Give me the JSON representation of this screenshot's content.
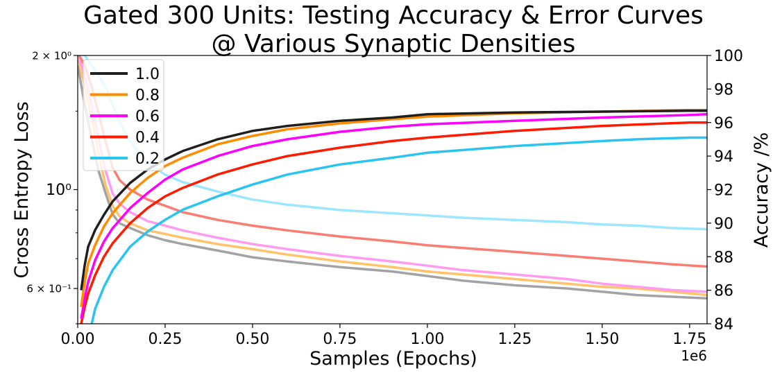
{
  "chart_data": {
    "type": "line",
    "title_lines": [
      "Gated 300 Units: Testing Accuracy & Error Curves",
      "@ Various Synaptic Densities"
    ],
    "xlabel": "Samples (Epochs)",
    "x_offset_label": "1e6",
    "ylabel_left": "Cross Entropy Loss",
    "ylabel_right": "Accuracy /%",
    "xlim": [
      0,
      1.8
    ],
    "x_ticks": [
      0.0,
      0.25,
      0.5,
      0.75,
      1.0,
      1.25,
      1.5,
      1.75
    ],
    "x_tick_labels": [
      "0.00",
      "0.25",
      "0.50",
      "0.75",
      "1.00",
      "1.25",
      "1.50",
      "1.75"
    ],
    "ylim_left": [
      0.5,
      2.0
    ],
    "y_left_scale": "log",
    "y_left_ticks": [
      {
        "value": 2.0,
        "label": "2 × 10⁰",
        "size": "small"
      },
      {
        "value": 1.0,
        "label": "10⁰",
        "size": "large"
      },
      {
        "value": 0.6,
        "label": "6 × 10⁻¹",
        "size": "small"
      }
    ],
    "ylim_right": [
      84,
      100
    ],
    "y_right_ticks": [
      84,
      86,
      88,
      90,
      92,
      94,
      96,
      98,
      100
    ],
    "legend": {
      "placement": "top-left",
      "entries": [
        "1.0",
        "0.8",
        "0.6",
        "0.4",
        "0.2"
      ]
    },
    "series": [
      {
        "name": "1.0",
        "color": "#1f1f1f",
        "loss_color": "#a3a3a3",
        "accuracy": [
          [
            0.01,
            86.0
          ],
          [
            0.02,
            87.5
          ],
          [
            0.03,
            88.6
          ],
          [
            0.05,
            89.6
          ],
          [
            0.075,
            90.5
          ],
          [
            0.1,
            91.3
          ],
          [
            0.15,
            92.4
          ],
          [
            0.2,
            93.2
          ],
          [
            0.25,
            93.8
          ],
          [
            0.3,
            94.3
          ],
          [
            0.4,
            95.0
          ],
          [
            0.5,
            95.5
          ],
          [
            0.6,
            95.8
          ],
          [
            0.75,
            96.1
          ],
          [
            0.9,
            96.3
          ],
          [
            1.0,
            96.5
          ],
          [
            1.25,
            96.6
          ],
          [
            1.5,
            96.65
          ],
          [
            1.75,
            96.7
          ],
          [
            1.8,
            96.7
          ]
        ],
        "loss": [
          [
            0.0,
            1.9
          ],
          [
            0.02,
            1.55
          ],
          [
            0.04,
            1.3
          ],
          [
            0.06,
            1.1
          ],
          [
            0.08,
            0.98
          ],
          [
            0.1,
            0.88
          ],
          [
            0.12,
            0.84
          ],
          [
            0.15,
            0.82
          ],
          [
            0.2,
            0.79
          ],
          [
            0.25,
            0.77
          ],
          [
            0.3,
            0.755
          ],
          [
            0.4,
            0.73
          ],
          [
            0.5,
            0.705
          ],
          [
            0.6,
            0.69
          ],
          [
            0.75,
            0.67
          ],
          [
            0.9,
            0.655
          ],
          [
            1.0,
            0.64
          ],
          [
            1.1,
            0.625
          ],
          [
            1.25,
            0.61
          ],
          [
            1.4,
            0.6
          ],
          [
            1.5,
            0.59
          ],
          [
            1.6,
            0.58
          ],
          [
            1.7,
            0.575
          ],
          [
            1.8,
            0.57
          ]
        ]
      },
      {
        "name": "0.8",
        "color": "#ff8c00",
        "loss_color": "#ffc36b",
        "accuracy": [
          [
            0.01,
            85.0
          ],
          [
            0.02,
            86.5
          ],
          [
            0.03,
            87.6
          ],
          [
            0.05,
            88.7
          ],
          [
            0.075,
            89.8
          ],
          [
            0.1,
            90.6
          ],
          [
            0.15,
            91.8
          ],
          [
            0.2,
            92.7
          ],
          [
            0.25,
            93.4
          ],
          [
            0.3,
            93.9
          ],
          [
            0.4,
            94.7
          ],
          [
            0.5,
            95.2
          ],
          [
            0.6,
            95.6
          ],
          [
            0.75,
            95.95
          ],
          [
            0.9,
            96.2
          ],
          [
            1.0,
            96.35
          ],
          [
            1.25,
            96.55
          ],
          [
            1.5,
            96.65
          ],
          [
            1.75,
            96.75
          ],
          [
            1.8,
            96.75
          ]
        ],
        "loss": [
          [
            0.0,
            2.0
          ],
          [
            0.02,
            1.7
          ],
          [
            0.04,
            1.45
          ],
          [
            0.06,
            1.2
          ],
          [
            0.08,
            1.02
          ],
          [
            0.1,
            0.92
          ],
          [
            0.12,
            0.87
          ],
          [
            0.15,
            0.84
          ],
          [
            0.2,
            0.81
          ],
          [
            0.25,
            0.795
          ],
          [
            0.3,
            0.78
          ],
          [
            0.4,
            0.755
          ],
          [
            0.5,
            0.735
          ],
          [
            0.6,
            0.715
          ],
          [
            0.75,
            0.69
          ],
          [
            0.9,
            0.67
          ],
          [
            1.0,
            0.655
          ],
          [
            1.1,
            0.645
          ],
          [
            1.25,
            0.63
          ],
          [
            1.4,
            0.615
          ],
          [
            1.5,
            0.605
          ],
          [
            1.6,
            0.6
          ],
          [
            1.7,
            0.59
          ],
          [
            1.8,
            0.58
          ]
        ]
      },
      {
        "name": "0.6",
        "color": "#ff00ff",
        "loss_color": "#ff9cf0",
        "accuracy": [
          [
            0.01,
            84.3
          ],
          [
            0.02,
            85.5
          ],
          [
            0.03,
            86.5
          ],
          [
            0.05,
            87.8
          ],
          [
            0.075,
            88.9
          ],
          [
            0.1,
            89.7
          ],
          [
            0.15,
            90.9
          ],
          [
            0.2,
            91.8
          ],
          [
            0.25,
            92.6
          ],
          [
            0.3,
            93.2
          ],
          [
            0.4,
            94.0
          ],
          [
            0.5,
            94.6
          ],
          [
            0.6,
            95.0
          ],
          [
            0.75,
            95.45
          ],
          [
            0.9,
            95.75
          ],
          [
            1.0,
            95.9
          ],
          [
            1.25,
            96.1
          ],
          [
            1.5,
            96.3
          ],
          [
            1.75,
            96.45
          ],
          [
            1.8,
            96.5
          ]
        ],
        "loss": [
          [
            0.0,
            2.05
          ],
          [
            0.02,
            1.8
          ],
          [
            0.04,
            1.55
          ],
          [
            0.06,
            1.3
          ],
          [
            0.08,
            1.1
          ],
          [
            0.1,
            0.98
          ],
          [
            0.12,
            0.93
          ],
          [
            0.15,
            0.89
          ],
          [
            0.2,
            0.85
          ],
          [
            0.25,
            0.83
          ],
          [
            0.3,
            0.81
          ],
          [
            0.4,
            0.78
          ],
          [
            0.5,
            0.755
          ],
          [
            0.6,
            0.735
          ],
          [
            0.75,
            0.71
          ],
          [
            0.9,
            0.69
          ],
          [
            1.0,
            0.675
          ],
          [
            1.1,
            0.66
          ],
          [
            1.25,
            0.645
          ],
          [
            1.4,
            0.63
          ],
          [
            1.5,
            0.615
          ],
          [
            1.6,
            0.605
          ],
          [
            1.7,
            0.595
          ],
          [
            1.8,
            0.59
          ]
        ]
      },
      {
        "name": "0.4",
        "color": "#ff1a00",
        "loss_color": "#f97d72",
        "accuracy": [
          [
            0.01,
            84.0
          ],
          [
            0.02,
            85.0
          ],
          [
            0.03,
            85.8
          ],
          [
            0.05,
            86.9
          ],
          [
            0.075,
            88.0
          ],
          [
            0.1,
            88.8
          ],
          [
            0.15,
            90.0
          ],
          [
            0.2,
            90.9
          ],
          [
            0.25,
            91.6
          ],
          [
            0.3,
            92.1
          ],
          [
            0.4,
            92.9
          ],
          [
            0.5,
            93.5
          ],
          [
            0.6,
            94.0
          ],
          [
            0.75,
            94.5
          ],
          [
            0.9,
            94.9
          ],
          [
            1.0,
            95.1
          ],
          [
            1.25,
            95.5
          ],
          [
            1.5,
            95.8
          ],
          [
            1.75,
            96.0
          ],
          [
            1.8,
            96.0
          ]
        ],
        "loss": [
          [
            0.0,
            2.1
          ],
          [
            0.02,
            1.9
          ],
          [
            0.04,
            1.7
          ],
          [
            0.06,
            1.48
          ],
          [
            0.08,
            1.28
          ],
          [
            0.1,
            1.12
          ],
          [
            0.12,
            1.05
          ],
          [
            0.15,
            1.0
          ],
          [
            0.2,
            0.95
          ],
          [
            0.25,
            0.92
          ],
          [
            0.3,
            0.89
          ],
          [
            0.4,
            0.855
          ],
          [
            0.5,
            0.83
          ],
          [
            0.6,
            0.81
          ],
          [
            0.75,
            0.785
          ],
          [
            0.9,
            0.765
          ],
          [
            1.0,
            0.75
          ],
          [
            1.1,
            0.74
          ],
          [
            1.25,
            0.725
          ],
          [
            1.4,
            0.71
          ],
          [
            1.5,
            0.7
          ],
          [
            1.6,
            0.69
          ],
          [
            1.7,
            0.68
          ],
          [
            1.8,
            0.672
          ]
        ]
      },
      {
        "name": "0.2",
        "color": "#29c4f0",
        "loss_color": "#9ce6ff",
        "accuracy": [
          [
            0.04,
            84.0
          ],
          [
            0.05,
            84.9
          ],
          [
            0.075,
            86.2
          ],
          [
            0.1,
            87.2
          ],
          [
            0.15,
            88.6
          ],
          [
            0.2,
            89.5
          ],
          [
            0.25,
            90.2
          ],
          [
            0.3,
            90.8
          ],
          [
            0.4,
            91.6
          ],
          [
            0.5,
            92.3
          ],
          [
            0.6,
            92.9
          ],
          [
            0.75,
            93.5
          ],
          [
            0.9,
            93.9
          ],
          [
            1.0,
            94.2
          ],
          [
            1.25,
            94.6
          ],
          [
            1.5,
            94.9
          ],
          [
            1.6,
            95.0
          ],
          [
            1.75,
            95.1
          ],
          [
            1.8,
            95.1
          ]
        ],
        "loss": [
          [
            0.0,
            2.15
          ],
          [
            0.02,
            2.0
          ],
          [
            0.05,
            1.85
          ],
          [
            0.08,
            1.7
          ],
          [
            0.1,
            1.55
          ],
          [
            0.12,
            1.42
          ],
          [
            0.15,
            1.28
          ],
          [
            0.2,
            1.15
          ],
          [
            0.25,
            1.08
          ],
          [
            0.3,
            1.04
          ],
          [
            0.4,
            0.99
          ],
          [
            0.5,
            0.95
          ],
          [
            0.6,
            0.925
          ],
          [
            0.75,
            0.9
          ],
          [
            0.9,
            0.885
          ],
          [
            1.0,
            0.875
          ],
          [
            1.1,
            0.865
          ],
          [
            1.25,
            0.855
          ],
          [
            1.4,
            0.845
          ],
          [
            1.5,
            0.835
          ],
          [
            1.6,
            0.83
          ],
          [
            1.7,
            0.82
          ],
          [
            1.8,
            0.815
          ]
        ]
      }
    ]
  }
}
